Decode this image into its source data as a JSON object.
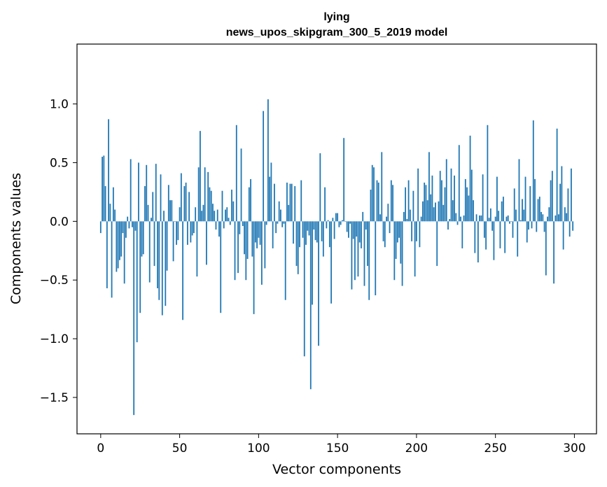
{
  "chart_data": {
    "type": "bar",
    "title": "lying",
    "subtitle": "news_upos_skipgram_300_5_2019 model",
    "xlabel": "Vector components",
    "ylabel": "Components values",
    "xlim": [
      -15,
      314
    ],
    "ylim": [
      -1.81,
      1.51
    ],
    "xticks": [
      0,
      50,
      100,
      150,
      200,
      250,
      300
    ],
    "xtick_labels": [
      "0",
      "50",
      "100",
      "150",
      "200",
      "250",
      "300"
    ],
    "yticks": [
      -1.5,
      -1.0,
      -0.5,
      0.0,
      0.5,
      1.0
    ],
    "ytick_labels": [
      "−1.5",
      "−1.0",
      "−0.5",
      "0.0",
      "0.5",
      "1.0"
    ],
    "color": "#1f77b4",
    "values": [
      -0.1,
      0.55,
      0.56,
      0.3,
      -0.57,
      0.87,
      0.15,
      -0.65,
      0.29,
      0.1,
      -0.43,
      -0.4,
      -0.33,
      -0.3,
      -0.1,
      -0.53,
      -0.14,
      0.04,
      -0.06,
      0.53,
      -0.05,
      -1.65,
      -0.08,
      -1.03,
      0.5,
      -0.78,
      -0.3,
      -0.28,
      0.3,
      0.48,
      0.14,
      -0.52,
      0.03,
      0.25,
      -0.38,
      0.49,
      -0.57,
      -0.67,
      0.4,
      -0.8,
      0.09,
      -0.72,
      -0.42,
      0.31,
      0.18,
      0.18,
      -0.34,
      0.0,
      -0.2,
      -0.16,
      0.12,
      0.41,
      -0.84,
      0.3,
      0.33,
      -0.2,
      0.25,
      -0.18,
      -0.12,
      -0.1,
      0.12,
      -0.47,
      0.46,
      0.77,
      0.09,
      0.14,
      0.46,
      -0.37,
      0.42,
      0.29,
      0.26,
      0.15,
      0.09,
      -0.07,
      0.1,
      -0.13,
      -0.78,
      0.26,
      -0.06,
      0.1,
      0.12,
      0.03,
      -0.03,
      0.27,
      0.17,
      -0.5,
      0.82,
      -0.44,
      -0.11,
      0.62,
      -0.04,
      -0.28,
      -0.5,
      -0.32,
      0.29,
      0.36,
      -0.3,
      -0.79,
      -0.18,
      -0.23,
      -0.14,
      -0.2,
      -0.54,
      0.94,
      -0.4,
      -0.03,
      1.04,
      0.38,
      0.5,
      -0.23,
      0.32,
      -0.1,
      -0.02,
      0.17,
      0.1,
      -0.05,
      -0.02,
      -0.67,
      0.33,
      0.14,
      0.32,
      0.32,
      -0.19,
      0.3,
      -0.38,
      -0.45,
      -0.22,
      0.35,
      -0.14,
      -1.15,
      -0.2,
      -0.08,
      -0.12,
      -1.43,
      -0.71,
      -0.07,
      -0.16,
      -0.18,
      -1.06,
      0.58,
      -0.17,
      -0.3,
      0.29,
      -0.06,
      0.01,
      -0.22,
      -0.7,
      0.03,
      -0.15,
      0.07,
      0.07,
      -0.05,
      -0.03,
      0.01,
      0.71,
      0.0,
      -0.09,
      -0.14,
      -0.02,
      -0.58,
      -0.15,
      -0.5,
      -0.13,
      -0.47,
      -0.18,
      -0.23,
      0.08,
      -0.55,
      -0.07,
      -0.38,
      -0.67,
      0.27,
      0.48,
      0.46,
      -0.63,
      0.35,
      0.33,
      0.06,
      0.59,
      -0.17,
      -0.22,
      0.04,
      0.15,
      -0.1,
      0.35,
      0.31,
      -0.5,
      -0.32,
      -0.18,
      -0.14,
      -0.36,
      -0.55,
      0.08,
      0.29,
      0.02,
      0.35,
      0.1,
      -0.17,
      0.26,
      -0.47,
      -0.17,
      0.45,
      -0.22,
      0.04,
      0.17,
      0.33,
      0.31,
      0.18,
      0.59,
      0.23,
      0.39,
      0.12,
      0.16,
      -0.38,
      0.17,
      0.43,
      0.35,
      0.14,
      0.29,
      0.53,
      -0.07,
      0.02,
      0.45,
      0.18,
      0.39,
      0.07,
      -0.03,
      0.65,
      0.04,
      -0.23,
      0.05,
      0.36,
      0.29,
      0.22,
      0.73,
      0.44,
      0.18,
      -0.27,
      0.06,
      -0.35,
      0.05,
      0.05,
      0.4,
      -0.14,
      -0.24,
      0.82,
      0.03,
      0.11,
      -0.08,
      -0.33,
      0.04,
      0.38,
      0.09,
      -0.23,
      0.17,
      0.21,
      -0.27,
      0.04,
      0.05,
      -0.02,
      0.0,
      -0.14,
      0.28,
      0.1,
      -0.3,
      0.53,
      0.01,
      0.19,
      0.1,
      0.38,
      -0.18,
      -0.07,
      0.3,
      -0.06,
      0.86,
      0.36,
      -0.09,
      0.19,
      0.21,
      0.08,
      0.06,
      -0.09,
      -0.46,
      0.04,
      0.12,
      0.35,
      0.43,
      -0.53,
      0.05,
      0.79,
      0.06,
      0.32,
      0.47,
      -0.24,
      0.12,
      0.07,
      0.28,
      -0.13,
      0.45,
      -0.08
    ]
  }
}
